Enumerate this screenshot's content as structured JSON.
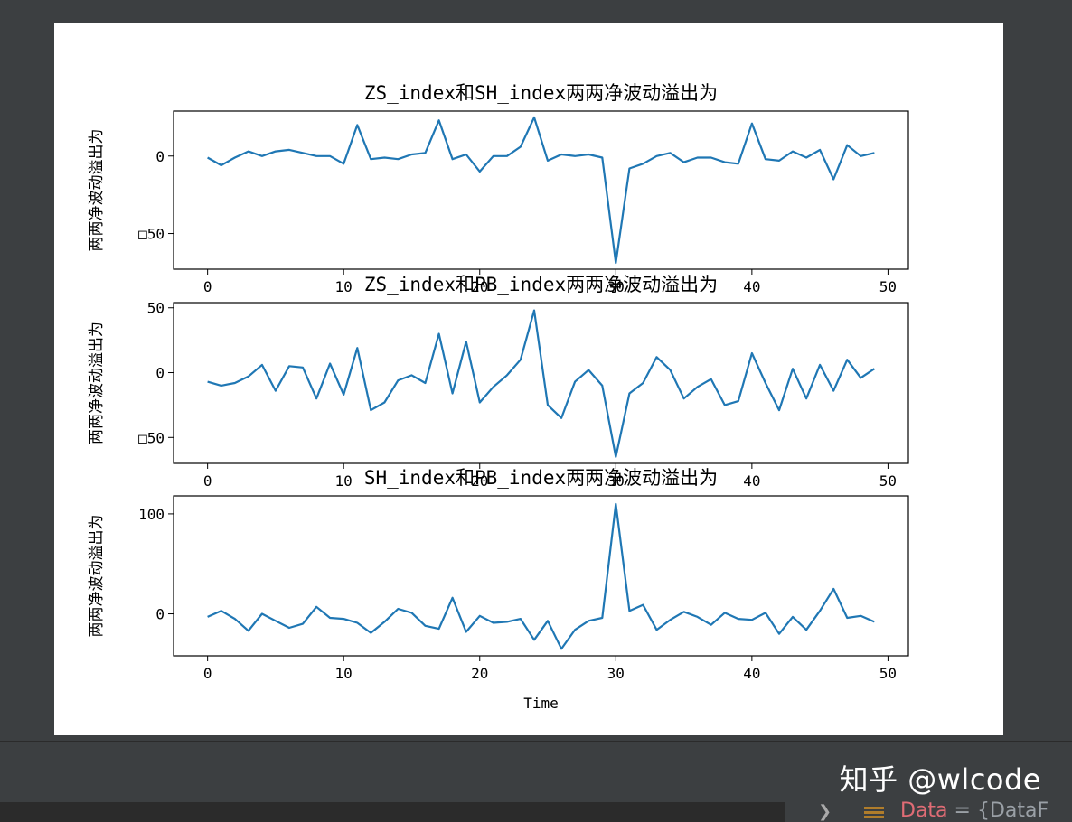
{
  "watermark": "知乎 @wlcode",
  "debug": {
    "var_name": "Data",
    "var_value": " = {DataF"
  },
  "colors": {
    "line": "#1f77b4",
    "ide_bg": "#3c3f41"
  },
  "chart_data": [
    {
      "type": "line",
      "title": "ZS_index和SH_index两两净波动溢出为",
      "ylabel": "两两净波动溢出为",
      "xlabel": "",
      "xlim": [
        -2.5,
        51.5
      ],
      "ylim": [
        -73,
        29
      ],
      "xticks": [
        0,
        10,
        20,
        30,
        40,
        50
      ],
      "yticks": [
        0,
        -50
      ],
      "ytick_labels": [
        "0",
        "□50"
      ],
      "x": [
        0,
        1,
        2,
        3,
        4,
        5,
        6,
        7,
        8,
        9,
        10,
        11,
        12,
        13,
        14,
        15,
        16,
        17,
        18,
        19,
        20,
        21,
        22,
        23,
        24,
        25,
        26,
        27,
        28,
        29,
        30,
        31,
        32,
        33,
        34,
        35,
        36,
        37,
        38,
        39,
        40,
        41,
        42,
        43,
        44,
        45,
        46,
        47,
        48,
        49
      ],
      "values": [
        -1,
        -6,
        -1,
        3,
        0,
        3,
        4,
        2,
        0,
        0,
        -5,
        20,
        -2,
        -1,
        -2,
        1,
        2,
        23,
        -2,
        1,
        -10,
        0,
        0,
        6,
        25,
        -3,
        1,
        0,
        1,
        -1,
        -69,
        -8,
        -5,
        0,
        2,
        -4,
        -1,
        -1,
        -4,
        -5,
        21,
        -2,
        -3,
        3,
        -1,
        4,
        -15,
        7,
        0,
        2
      ]
    },
    {
      "type": "line",
      "title": "ZS_index和PB_index两两净波动溢出为",
      "ylabel": "两两净波动溢出为",
      "xlabel": "",
      "xlim": [
        -2.5,
        51.5
      ],
      "ylim": [
        -70,
        54
      ],
      "xticks": [
        0,
        10,
        20,
        30,
        40,
        50
      ],
      "yticks": [
        50,
        0,
        -50
      ],
      "ytick_labels": [
        "50",
        "0",
        "□50"
      ],
      "x": [
        0,
        1,
        2,
        3,
        4,
        5,
        6,
        7,
        8,
        9,
        10,
        11,
        12,
        13,
        14,
        15,
        16,
        17,
        18,
        19,
        20,
        21,
        22,
        23,
        24,
        25,
        26,
        27,
        28,
        29,
        30,
        31,
        32,
        33,
        34,
        35,
        36,
        37,
        38,
        39,
        40,
        41,
        42,
        43,
        44,
        45,
        46,
        47,
        48,
        49
      ],
      "values": [
        -7,
        -10,
        -8,
        -3,
        6,
        -14,
        5,
        4,
        -20,
        7,
        -17,
        19,
        -29,
        -23,
        -6,
        -2,
        -8,
        30,
        -16,
        24,
        -23,
        -11,
        -2,
        10,
        48,
        -25,
        -35,
        -7,
        2,
        -10,
        -65,
        -16,
        -8,
        12,
        2,
        -20,
        -11,
        -5,
        -25,
        -22,
        15,
        -8,
        -29,
        3,
        -20,
        6,
        -14,
        10,
        -4,
        3
      ]
    },
    {
      "type": "line",
      "title": "SH_index和PB_index两两净波动溢出为",
      "ylabel": "两两净波动溢出为",
      "xlabel": "Time",
      "xlim": [
        -2.5,
        51.5
      ],
      "ylim": [
        -42,
        118
      ],
      "xticks": [
        0,
        10,
        20,
        30,
        40,
        50
      ],
      "yticks": [
        100,
        0
      ],
      "ytick_labels": [
        "100",
        "0"
      ],
      "x": [
        0,
        1,
        2,
        3,
        4,
        5,
        6,
        7,
        8,
        9,
        10,
        11,
        12,
        13,
        14,
        15,
        16,
        17,
        18,
        19,
        20,
        21,
        22,
        23,
        24,
        25,
        26,
        27,
        28,
        29,
        30,
        31,
        32,
        33,
        34,
        35,
        36,
        37,
        38,
        39,
        40,
        41,
        42,
        43,
        44,
        45,
        46,
        47,
        48,
        49
      ],
      "values": [
        -3,
        3,
        -5,
        -17,
        0,
        -7,
        -14,
        -10,
        7,
        -4,
        -5,
        -9,
        -19,
        -8,
        5,
        1,
        -12,
        -15,
        16,
        -18,
        -2,
        -9,
        -8,
        -5,
        -26,
        -7,
        -35,
        -16,
        -7,
        -4,
        110,
        3,
        9,
        -16,
        -6,
        2,
        -3,
        -11,
        1,
        -5,
        -6,
        1,
        -20,
        -3,
        -16,
        3,
        25,
        -4,
        -2,
        -8
      ]
    }
  ]
}
